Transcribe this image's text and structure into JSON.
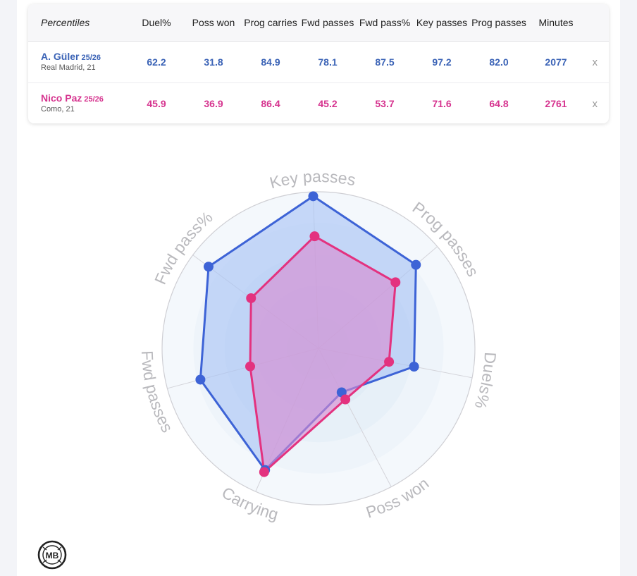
{
  "table": {
    "header_label": "Percentiles",
    "columns": [
      {
        "key": "duel",
        "label": "Duel%"
      },
      {
        "key": "poss_won",
        "label": "Poss won"
      },
      {
        "key": "prog_carries",
        "label": "Prog carries"
      },
      {
        "key": "fwd_passes",
        "label": "Fwd passes"
      },
      {
        "key": "fwd_pass_pct",
        "label": "Fwd pass%"
      },
      {
        "key": "key_passes",
        "label": "Key passes"
      },
      {
        "key": "prog_passes",
        "label": "Prog passes"
      },
      {
        "key": "minutes",
        "label": "Minutes"
      }
    ],
    "players": [
      {
        "name": "A. Güler",
        "season": "25/26",
        "team": "Real Madrid, 21",
        "values": [
          "62.2",
          "31.8",
          "84.9",
          "78.1",
          "87.5",
          "97.2",
          "82.0",
          "2077"
        ],
        "remove_label": "x"
      },
      {
        "name": "Nico Paz",
        "season": "25/26",
        "team": "Como, 21",
        "values": [
          "45.9",
          "36.9",
          "86.4",
          "45.2",
          "53.7",
          "71.6",
          "64.8",
          "2761"
        ],
        "remove_label": "x"
      }
    ]
  },
  "chart_data": {
    "type": "radar",
    "axes": [
      "Key passes",
      "Prog passes",
      "Duels%",
      "Poss won",
      "Carrying",
      "Fwd passes",
      "Fwd pass%"
    ],
    "range": [
      0,
      100
    ],
    "series": [
      {
        "name": "A. Güler",
        "values": [
          97.2,
          82.0,
          62.2,
          31.8,
          84.9,
          78.1,
          87.5
        ],
        "color": "#3d63d6"
      },
      {
        "name": "Nico Paz",
        "values": [
          71.6,
          64.8,
          45.9,
          36.9,
          86.4,
          45.2,
          53.7
        ],
        "color": "#e3327f"
      }
    ]
  },
  "colors": {
    "blue_text": "#3b63b6",
    "pink_text": "#d6348f",
    "blue_fill": "#a8c3f5",
    "pink_fill": "#d98ad0"
  },
  "logo": {
    "text": "MB"
  }
}
